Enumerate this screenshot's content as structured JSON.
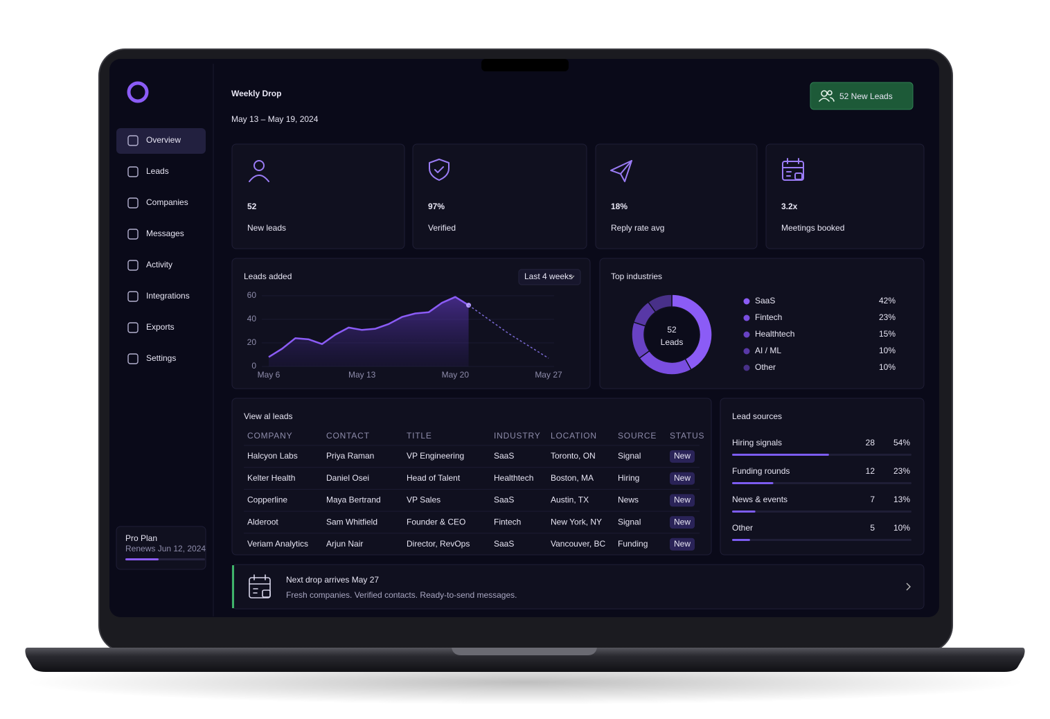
{
  "sidebar": {
    "nav": [
      "Overview",
      "Leads",
      "Companies",
      "Messages",
      "Activity",
      "Integrations",
      "Exports",
      "Settings"
    ],
    "plan": {
      "name": "Pro Plan",
      "renews": "Renews Jun 12, 2024"
    }
  },
  "header": {
    "title": "Weekly Drop",
    "dates": "May 13 – May 19, 2024",
    "button": "52 New Leads"
  },
  "stats": [
    {
      "value": "52",
      "label": "New leads"
    },
    {
      "value": "97%",
      "label": "Verified"
    },
    {
      "value": "18%",
      "label": "Reply rate avg"
    },
    {
      "value": "3.2x",
      "label": "Meetings booked"
    }
  ],
  "chart_data": [
    {
      "type": "line",
      "title": "Leads added",
      "filter": "Last 4 weeks",
      "categories": [
        "May 6",
        null,
        null,
        null,
        null,
        null,
        null,
        "May 13",
        null,
        null,
        null,
        null,
        null,
        null,
        "May 20",
        null,
        null,
        null,
        null,
        null,
        null,
        "May 27"
      ],
      "series": [
        {
          "color": "#8b5cf6",
          "values": [
            8,
            15,
            24,
            23,
            19,
            27,
            33,
            31,
            32,
            36,
            42,
            45,
            46,
            54,
            59,
            52,
            null,
            null,
            null,
            null,
            null,
            null
          ]
        },
        {
          "color": "#7c6bd6",
          "dashed": true,
          "values": [
            null,
            null,
            null,
            null,
            null,
            null,
            null,
            null,
            null,
            null,
            null,
            null,
            null,
            null,
            null,
            52,
            44,
            36,
            28,
            21,
            14,
            7
          ]
        }
      ],
      "area": true,
      "ylim": [
        0,
        60
      ],
      "yticks": [
        0,
        20,
        40,
        60
      ]
    },
    {
      "type": "pie",
      "title": "Top industries",
      "donut": true,
      "center_value": "52",
      "center_label": "Leads",
      "categories": [
        "SaaS",
        "Fintech",
        "Healthtech",
        "AI / ML",
        "Other"
      ],
      "values": [
        42,
        23,
        15,
        10,
        10
      ],
      "value_labels": [
        "42%",
        "23%",
        "15%",
        "10%",
        "10%"
      ],
      "colors": [
        "#8b5cf6",
        "#7a4ee0",
        "#6842c4",
        "#5838a6",
        "#483088"
      ]
    },
    {
      "type": "bar",
      "orientation": "horizontal",
      "title": "Lead sources",
      "categories": [
        "Hiring signals",
        "Funding rounds",
        "News & events",
        "Other"
      ],
      "counts": [
        28,
        12,
        7,
        5
      ],
      "values": [
        54,
        23,
        13,
        10
      ],
      "value_labels": [
        "54%",
        "23%",
        "13%",
        "10%"
      ],
      "xlim": [
        0,
        100
      ],
      "color": "#7c5cf0"
    }
  ],
  "table": {
    "title": "View al leads",
    "columns": [
      "COMPANY",
      "CONTACT",
      "TITLE",
      "INDUSTRY",
      "LOCATION",
      "SOURCE",
      "STATUS"
    ],
    "rows": [
      [
        "Halcyon Labs",
        "Priya Raman",
        "VP Engineering",
        "SaaS",
        "Toronto, ON",
        "Signal",
        "New"
      ],
      [
        "Kelter Health",
        "Daniel Osei",
        "Head of Talent",
        "Healthtech",
        "Boston, MA",
        "Hiring",
        "New"
      ],
      [
        "Copperline",
        "Maya Bertrand",
        "VP Sales",
        "SaaS",
        "Austin, TX",
        "News",
        "New"
      ],
      [
        "Alderoot",
        "Sam Whitfield",
        "Founder & CEO",
        "Fintech",
        "New York, NY",
        "Signal",
        "New"
      ],
      [
        "Veriam Analytics",
        "Arjun Nair",
        "Director, RevOps",
        "SaaS",
        "Vancouver, BC",
        "Funding",
        "New"
      ]
    ]
  },
  "banner": {
    "title": "Next drop arrives May 27",
    "subtitle": "Fresh companies. Verified contacts. Ready-to-send messages."
  }
}
